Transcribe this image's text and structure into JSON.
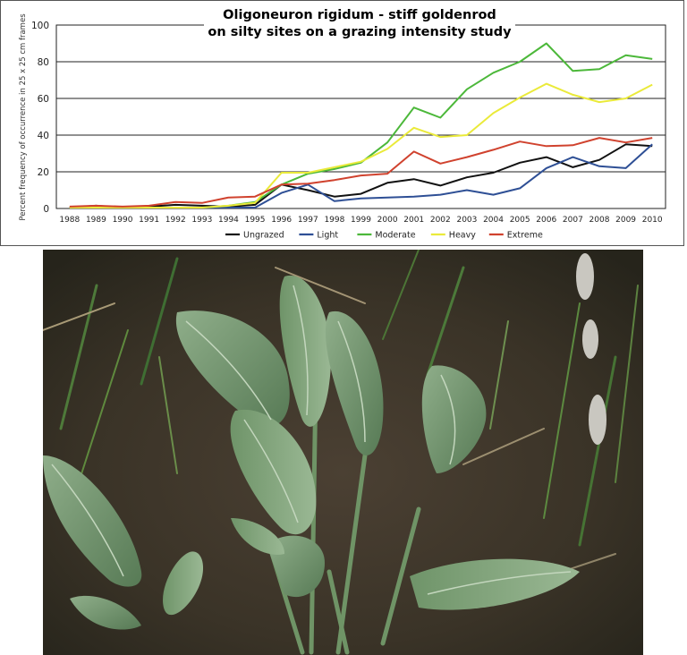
{
  "colors": {
    "Ungrazed": "#111111",
    "Light": "#2e4f95",
    "Moderate": "#4cb83a",
    "Heavy": "#eaea3a",
    "Extreme": "#d0422e"
  },
  "chart_data": {
    "type": "line",
    "title": "Oligoneuron rigidum  -  stiff goldenrod",
    "subtitle": "on silty sites on a grazing intensity study",
    "xlabel": "",
    "ylabel": "Percent frequency of occurrence in 25 x 25 cm frames",
    "ylim": [
      0,
      100
    ],
    "yticks": [
      0,
      20,
      40,
      60,
      80,
      100
    ],
    "grid": "horizontal",
    "legend_position": "bottom",
    "x": [
      "1988",
      "1989",
      "1990",
      "1991",
      "1992",
      "1993",
      "1994",
      "1995",
      "1996",
      "1997",
      "1998",
      "1999",
      "2000",
      "2001",
      "2002",
      "2003",
      "2004",
      "2005",
      "2006",
      "2007",
      "2008",
      "2009",
      "2010"
    ],
    "series": [
      {
        "name": "Ungrazed",
        "values": [
          0.5,
          1.5,
          0.5,
          1,
          2,
          1.5,
          1,
          2,
          13,
          10,
          6.5,
          8,
          14,
          16,
          12.5,
          17,
          19.5,
          25,
          28,
          22.5,
          26.5,
          35,
          34
        ]
      },
      {
        "name": "Light",
        "values": [
          0.5,
          0.5,
          0.5,
          0.5,
          0.5,
          0.5,
          0.5,
          0.5,
          8.5,
          13,
          4,
          5.5,
          6,
          6.5,
          7.5,
          10,
          7.5,
          11,
          22,
          28,
          23,
          22,
          35
        ]
      },
      {
        "name": "Moderate",
        "values": [
          0.5,
          0.5,
          0.5,
          0.5,
          0.5,
          0.5,
          1.5,
          3.5,
          13,
          19,
          21.5,
          25,
          36,
          55,
          49.5,
          65,
          74,
          80,
          90,
          75,
          76,
          83.5,
          81.5
        ]
      },
      {
        "name": "Heavy",
        "values": [
          0.5,
          0.5,
          0.5,
          0.5,
          0.5,
          0.5,
          1.5,
          3,
          19.5,
          19.5,
          22.5,
          25.5,
          32.5,
          44,
          39,
          40,
          52,
          60.5,
          68,
          62,
          58,
          60,
          67.5
        ]
      },
      {
        "name": "Extreme",
        "values": [
          1,
          1.5,
          1,
          1.5,
          3.5,
          3,
          6,
          6.5,
          13,
          13.5,
          15.5,
          18,
          19,
          31,
          24.5,
          28,
          32,
          36.5,
          34,
          34.5,
          38.5,
          36,
          38.5
        ]
      }
    ]
  },
  "photo": {
    "subject": "stiff goldenrod basal leaves"
  }
}
